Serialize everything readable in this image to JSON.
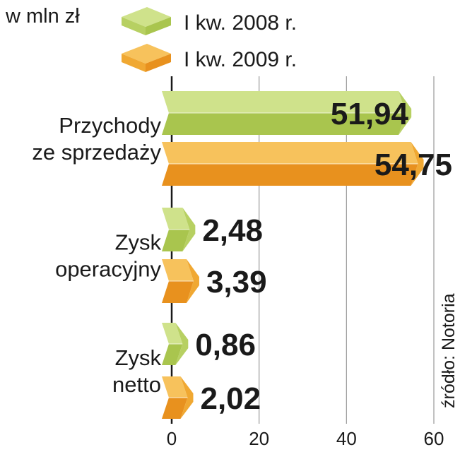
{
  "unit_label": "w mln zł",
  "source": "źródło: Notoria",
  "colors": {
    "green_top": "#cfe28b",
    "green_side": "#a9c54e",
    "green_front": "#b7d062",
    "orange_top": "#f7c25c",
    "orange_side": "#e8911e",
    "orange_front": "#f0a832",
    "axis": "#1a1a1a",
    "grid": "#9a9a9a",
    "text": "#1a1a1a"
  },
  "chart_data": {
    "type": "bar",
    "orientation": "horizontal",
    "categories": [
      "Przychody ze sprzedaży",
      "Zysk operacyjny",
      "Zysk netto"
    ],
    "category_lines": [
      [
        "Przychody",
        "ze sprzedaży"
      ],
      [
        "Zysk",
        "operacyjny"
      ],
      [
        "Zysk",
        "netto"
      ]
    ],
    "series": [
      {
        "name": "I kw. 2008 r.",
        "values": [
          51.94,
          2.48,
          0.86
        ],
        "labels": [
          "51,94",
          "2,48",
          "0,86"
        ]
      },
      {
        "name": "I kw. 2009 r.",
        "values": [
          54.75,
          3.39,
          2.02
        ],
        "labels": [
          "54,75",
          "3,39",
          "2,02"
        ]
      }
    ],
    "xlim": [
      0,
      60
    ],
    "xticks": [
      0,
      20,
      40,
      60
    ],
    "xtick_labels": [
      "0",
      "20",
      "40",
      "60"
    ],
    "grid": true,
    "legend_position": "top"
  }
}
